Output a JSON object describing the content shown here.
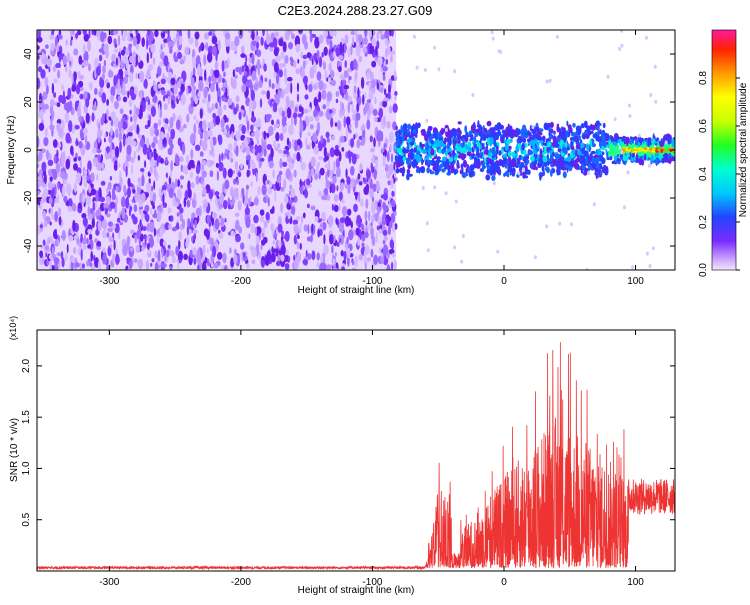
{
  "title": "C2E3.2024.288.23.27.G09",
  "chart_data": [
    {
      "type": "heatmap",
      "xlabel": "Height of straight line (km)",
      "ylabel": "Frequency (Hz)",
      "xlim": [
        -355,
        130
      ],
      "ylim": [
        -50,
        50
      ],
      "x_ticks": [
        -300,
        -200,
        -100,
        0,
        100
      ],
      "y_ticks": [
        -40,
        -20,
        0,
        20,
        40
      ],
      "colorbar": {
        "label": "Normalized spectral amplitude",
        "range": [
          0,
          1
        ],
        "ticks": [
          "0.0",
          "0.2",
          "0.4",
          "0.6",
          "0.8"
        ]
      }
    },
    {
      "type": "line",
      "xlabel": "Height of straight line (km)",
      "ylabel": "SNR (10 * v/v)",
      "y_multiplier": "(x10⁴)",
      "xlim": [
        -355,
        130
      ],
      "ylim": [
        0,
        2.35
      ],
      "x_ticks": [
        -300,
        -200,
        -100,
        0,
        100
      ],
      "y_ticks": [
        "0.5",
        "1.0",
        "1.5",
        "2.0"
      ],
      "color": "#ee3333"
    }
  ]
}
